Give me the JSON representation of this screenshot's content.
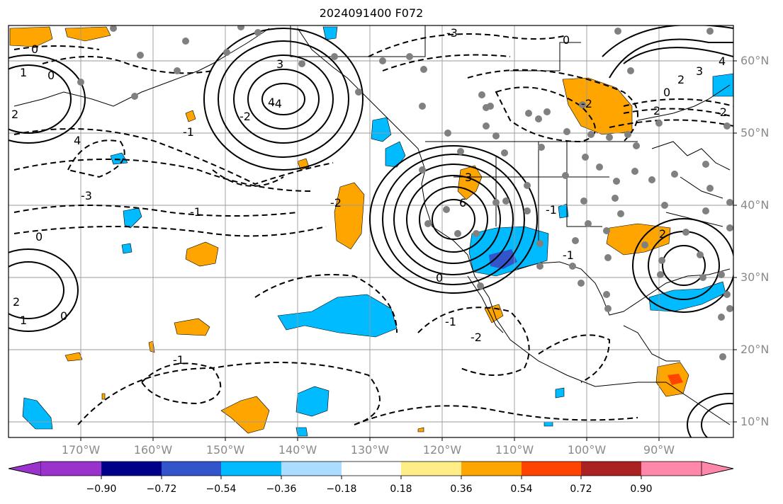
{
  "title": "2024091400 F072",
  "lat_labels": [
    "60°N",
    "50°N",
    "40°N",
    "30°N",
    "20°N",
    "10°N"
  ],
  "lon_labels": [
    "170°W",
    "160°W",
    "150°W",
    "140°W",
    "130°W",
    "120°W",
    "110°W",
    "100°W",
    "90°W"
  ],
  "colorbar": {
    "ticks": [
      "−0.90",
      "−0.72",
      "−0.54",
      "−0.36",
      "−0.18",
      "0.18",
      "0.36",
      "0.54",
      "0.72",
      "0.90"
    ],
    "colors": [
      "#9933cc",
      "#000088",
      "#3355cc",
      "#00bbff",
      "#aaddff",
      "#ffffff",
      "#ffee88",
      "#ffa500",
      "#ff4400",
      "#aa2222",
      "#ff88aa"
    ]
  },
  "contour_labels": [
    "0",
    "0",
    "1",
    "2",
    "4",
    "-1",
    "-2",
    "-3",
    "-4",
    "0",
    "1",
    "2",
    "3",
    "4",
    "-1",
    "-3",
    "0",
    "3",
    "6",
    "0",
    "-1",
    "-2",
    "-1",
    "-2",
    "2",
    "3",
    "4",
    "0",
    "-2",
    "2",
    "2",
    "0",
    "-1",
    "-1",
    "-2"
  ],
  "shading_colors": {
    "positive": "#ffa500",
    "negative": "#00bbff",
    "strong_negative": "#3355cc",
    "strong_positive": "#ff4400"
  },
  "station_marker_color": "#808080"
}
